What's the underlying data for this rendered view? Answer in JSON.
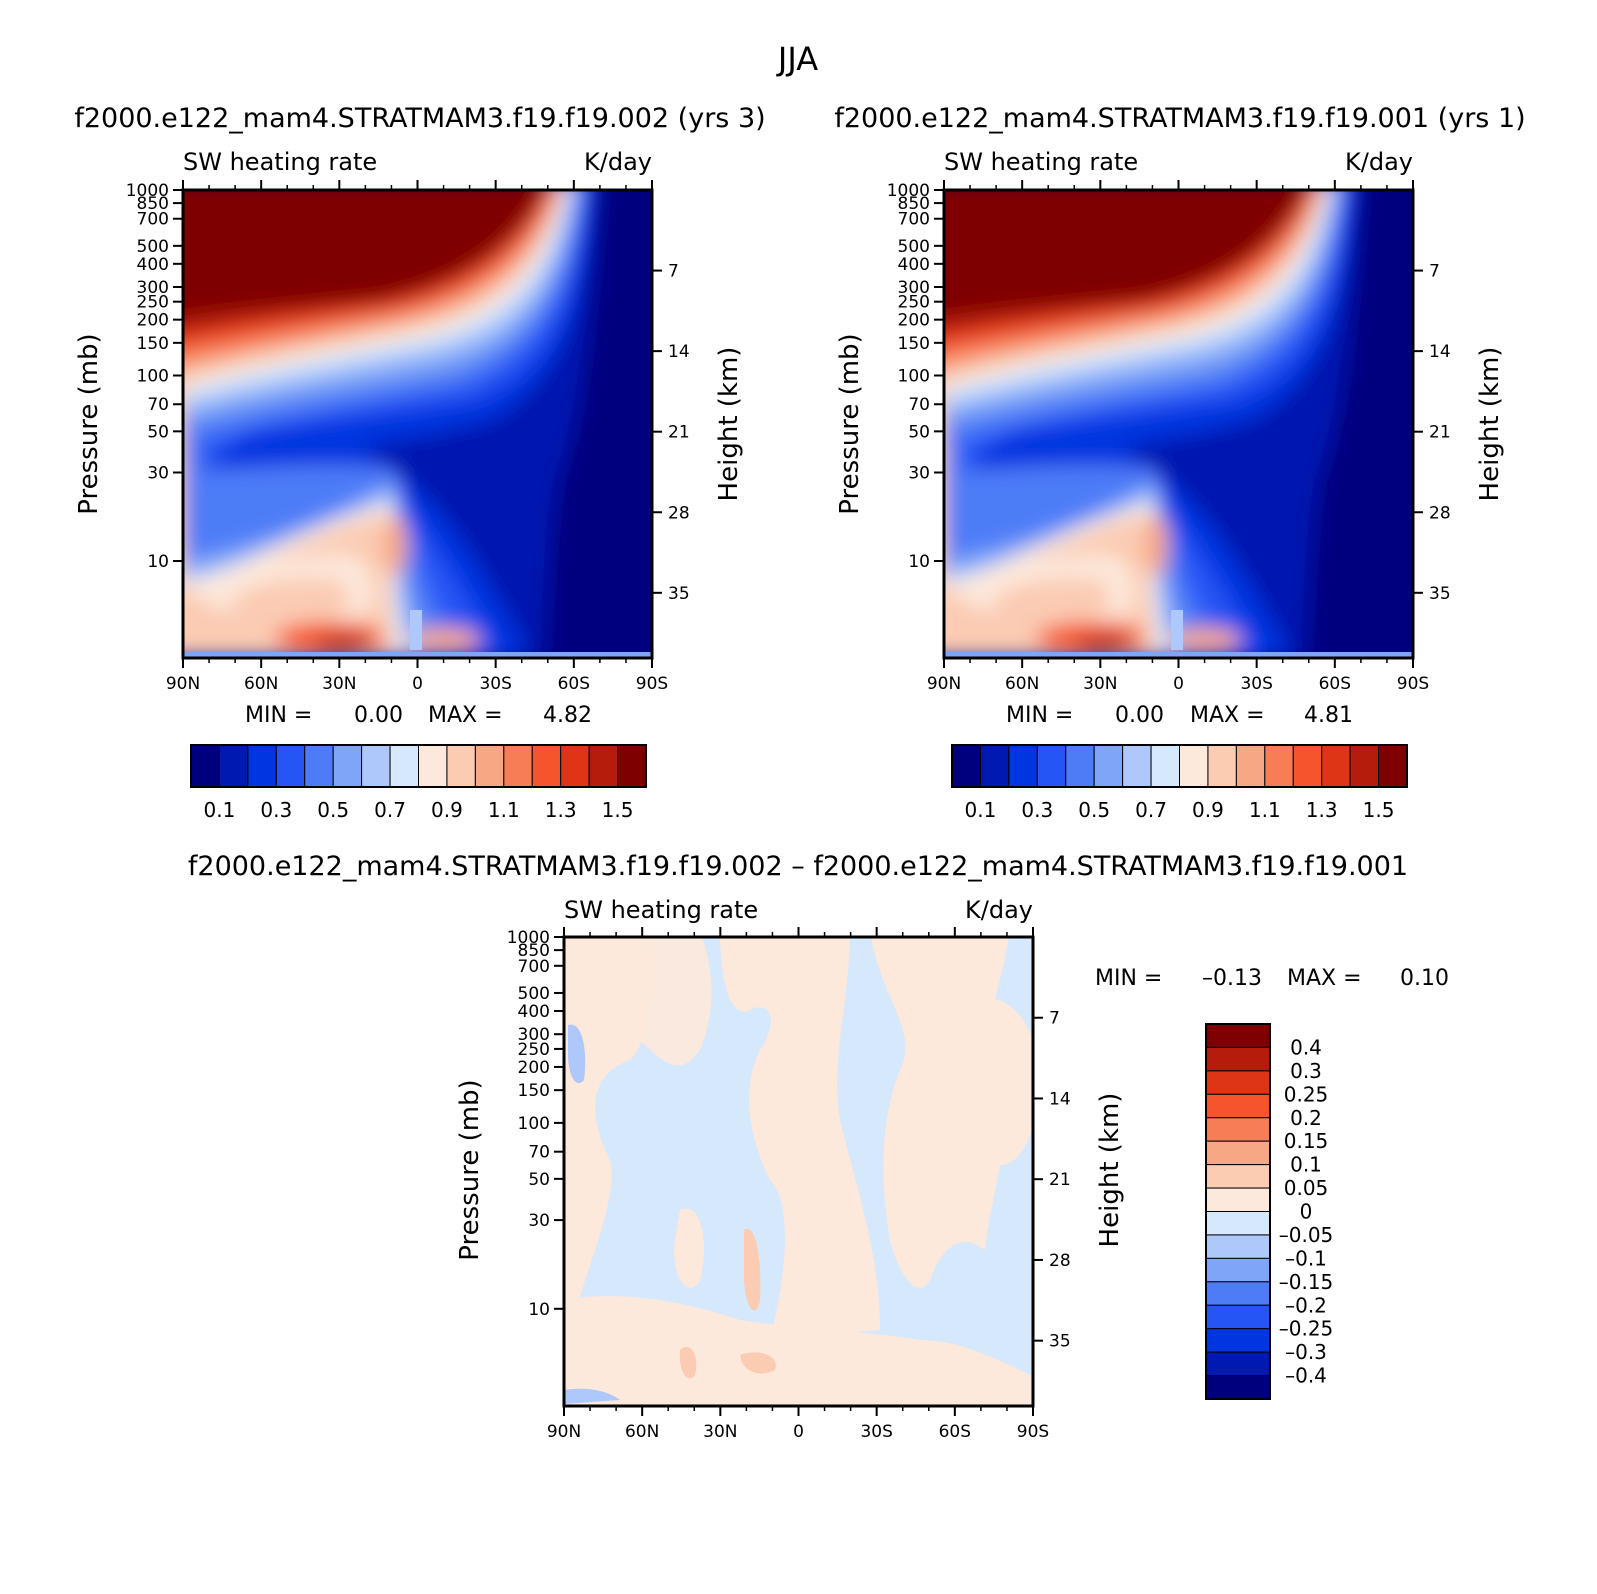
{
  "figure": {
    "title": "JJA",
    "label_min": "MIN =",
    "label_max": "MAX ="
  },
  "chart_data": [
    {
      "type": "heatmap",
      "panel": "top-left",
      "header": "f2000.e122_mam4.STRATMAM3.f19.f19.002 (yrs 3)",
      "title": "SW heating rate",
      "units": "K/day",
      "xlabel": "",
      "ylabel": "Pressure (mb)",
      "y2label": "Height (km)",
      "x_ticks": [
        "90N",
        "60N",
        "30N",
        "0",
        "30S",
        "60S",
        "90S"
      ],
      "xlim": [
        90,
        -90
      ],
      "y_scale": "log",
      "ylim": [
        1000,
        3
      ],
      "y_ticks": [
        1000,
        850,
        700,
        500,
        400,
        300,
        250,
        200,
        150,
        100,
        70,
        50,
        30,
        10
      ],
      "y2_ticks": [
        7,
        14,
        21,
        28,
        35
      ],
      "min": "0.00",
      "max": "4.82",
      "levels": [
        0.1,
        0.2,
        0.3,
        0.4,
        0.5,
        0.6,
        0.7,
        0.8,
        0.9,
        1.0,
        1.1,
        1.2,
        1.3,
        1.4,
        1.5
      ],
      "colorbar_labels": [
        "0.1",
        "0.3",
        "0.5",
        "0.7",
        "0.9",
        "1.1",
        "1.3",
        "1.5"
      ],
      "colorbar_orientation": "horizontal-below"
    },
    {
      "type": "heatmap",
      "panel": "top-right",
      "header": "f2000.e122_mam4.STRATMAM3.f19.f19.001 (yrs 1)",
      "title": "SW heating rate",
      "units": "K/day",
      "xlabel": "",
      "ylabel": "Pressure (mb)",
      "y2label": "Height (km)",
      "x_ticks": [
        "90N",
        "60N",
        "30N",
        "0",
        "30S",
        "60S",
        "90S"
      ],
      "xlim": [
        90,
        -90
      ],
      "y_scale": "log",
      "ylim": [
        1000,
        3
      ],
      "y_ticks": [
        1000,
        850,
        700,
        500,
        400,
        300,
        250,
        200,
        150,
        100,
        70,
        50,
        30,
        10
      ],
      "y2_ticks": [
        7,
        14,
        21,
        28,
        35
      ],
      "min": "0.00",
      "max": "4.81",
      "levels": [
        0.1,
        0.2,
        0.3,
        0.4,
        0.5,
        0.6,
        0.7,
        0.8,
        0.9,
        1.0,
        1.1,
        1.2,
        1.3,
        1.4,
        1.5
      ],
      "colorbar_labels": [
        "0.1",
        "0.3",
        "0.5",
        "0.7",
        "0.9",
        "1.1",
        "1.3",
        "1.5"
      ],
      "colorbar_orientation": "horizontal-below"
    },
    {
      "type": "heatmap",
      "panel": "bottom",
      "header": "f2000.e122_mam4.STRATMAM3.f19.f19.002 – f2000.e122_mam4.STRATMAM3.f19.f19.001",
      "title": "SW heating rate",
      "units": "K/day",
      "xlabel": "",
      "ylabel": "Pressure (mb)",
      "y2label": "Height (km)",
      "x_ticks": [
        "90N",
        "60N",
        "30N",
        "0",
        "30S",
        "60S",
        "90S"
      ],
      "xlim": [
        90,
        -90
      ],
      "y_scale": "log",
      "ylim": [
        1000,
        3
      ],
      "y_ticks": [
        1000,
        850,
        700,
        500,
        400,
        300,
        250,
        200,
        150,
        100,
        70,
        50,
        30,
        10
      ],
      "y2_ticks": [
        7,
        14,
        21,
        28,
        35
      ],
      "min": "–0.13",
      "max": "0.10",
      "levels": [
        -0.4,
        -0.3,
        -0.25,
        -0.2,
        -0.15,
        -0.1,
        -0.05,
        0,
        0.05,
        0.1,
        0.15,
        0.2,
        0.25,
        0.3,
        0.4
      ],
      "colorbar_labels": [
        "0.4",
        "0.3",
        "0.25",
        "0.2",
        "0.15",
        "0.1",
        "0.05",
        "0",
        "–0.05",
        "–0.1",
        "–0.15",
        "–0.2",
        "–0.25",
        "–0.3",
        "–0.4"
      ],
      "colorbar_orientation": "vertical-right"
    }
  ],
  "colors": {
    "palette16": [
      "#00007f",
      "#0019b0",
      "#0036e0",
      "#2555f5",
      "#4e7cf7",
      "#7ea5f8",
      "#afc8fb",
      "#d6e8fb",
      "#fde9dc",
      "#fbcbb2",
      "#f8a785",
      "#f67d56",
      "#f5542c",
      "#de3517",
      "#b61c0b",
      "#7f0000"
    ]
  }
}
